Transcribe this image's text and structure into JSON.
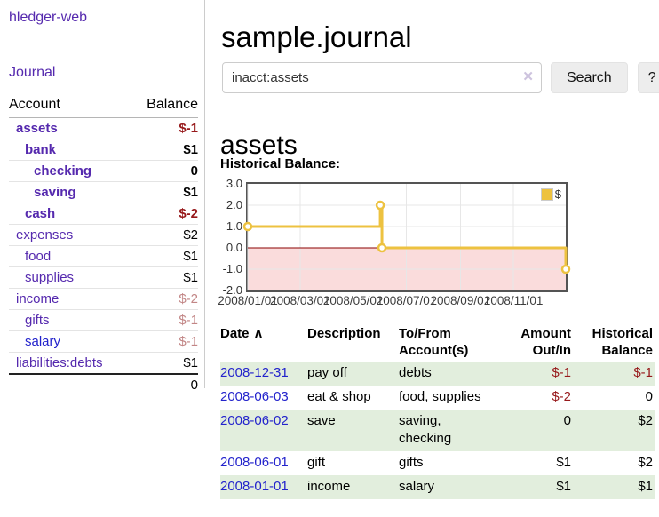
{
  "colors": {
    "purple": "#5529ae",
    "blue": "#2323cc",
    "neg_strong": "#97191b",
    "neg_muted": "#c28686",
    "row_green": "#e2eedd",
    "gold": "#edc240",
    "zero_line": "#8b0000",
    "neg_region": "#fadcdc",
    "border_dark": "#545454",
    "gridline": "#e7e7e7"
  },
  "app": {
    "brand": "hledger-web",
    "nav_journal": "Journal"
  },
  "sidebar": {
    "header": {
      "account": "Account",
      "balance": "Balance"
    },
    "accounts": [
      {
        "name": "assets",
        "balance": "$-1",
        "depth": 1,
        "bold": true,
        "tone": "neg"
      },
      {
        "name": "bank",
        "balance": "$1",
        "depth": 2,
        "bold": true,
        "tone": ""
      },
      {
        "name": "checking",
        "balance": "0",
        "depth": 3,
        "bold": true,
        "tone": ""
      },
      {
        "name": "saving",
        "balance": "$1",
        "depth": 3,
        "bold": true,
        "tone": ""
      },
      {
        "name": "cash",
        "balance": "$-2",
        "depth": 2,
        "bold": true,
        "tone": "neg"
      },
      {
        "name": "expenses",
        "balance": "$2",
        "depth": 1,
        "bold": false,
        "tone": ""
      },
      {
        "name": "food",
        "balance": "$1",
        "depth": 2,
        "bold": false,
        "tone": ""
      },
      {
        "name": "supplies",
        "balance": "$1",
        "depth": 2,
        "bold": false,
        "tone": ""
      },
      {
        "name": "income",
        "balance": "$-2",
        "depth": 1,
        "bold": false,
        "tone": "negmuted"
      },
      {
        "name": "gifts",
        "balance": "$-1",
        "depth": 2,
        "bold": false,
        "tone": "negmuted"
      },
      {
        "name": "salary",
        "balance": "$-1",
        "depth": 2,
        "bold": false,
        "tone": "negmuted",
        "blue": true
      },
      {
        "name": "liabilities:debts",
        "balance": "$1",
        "depth": 1,
        "bold": false,
        "tone": ""
      }
    ],
    "total": "0"
  },
  "main": {
    "title": "sample.journal",
    "search": {
      "value": "inacct:assets",
      "clear_icon": "✕",
      "button": "Search",
      "help": "?"
    },
    "account_heading": "assets",
    "chart_label": "Historical Balance:",
    "register": {
      "headers": [
        {
          "label": "Date",
          "align": "left",
          "sorted_asc": true
        },
        {
          "label": "Description",
          "align": "left"
        },
        {
          "label": "To/From Account(s)",
          "align": "left"
        },
        {
          "label": "Amount Out/In",
          "align": "right"
        },
        {
          "label": "Historical Balance",
          "align": "right"
        }
      ],
      "sort_icon": "∧",
      "rows": [
        {
          "date": "2008-12-31",
          "description": "pay off",
          "accounts": "debts",
          "amount": "$-1",
          "amount_neg": true,
          "balance": "$-1",
          "balance_neg": true
        },
        {
          "date": "2008-06-03",
          "description": "eat & shop",
          "accounts": "food, supplies",
          "amount": "$-2",
          "amount_neg": true,
          "balance": "0",
          "balance_neg": false
        },
        {
          "date": "2008-06-02",
          "description": "save",
          "accounts": "saving, checking",
          "amount": "0",
          "amount_neg": false,
          "balance": "$2",
          "balance_neg": false
        },
        {
          "date": "2008-06-01",
          "description": "gift",
          "accounts": "gifts",
          "amount": "$1",
          "amount_neg": false,
          "balance": "$2",
          "balance_neg": false
        },
        {
          "date": "2008-01-01",
          "description": "income",
          "accounts": "salary",
          "amount": "$1",
          "amount_neg": false,
          "balance": "$1",
          "balance_neg": false
        }
      ]
    }
  },
  "chart_data": {
    "type": "line",
    "title": "Historical Balance",
    "x_start": "2008-01-01",
    "x_span_days": 365,
    "x_ticks": [
      "2008/01/01",
      "2008/03/01",
      "2008/05/01",
      "2008/07/01",
      "2008/09/01",
      "2008/11/01"
    ],
    "y_ticks": [
      3.0,
      2.0,
      1.0,
      0.0,
      -1.0,
      -2.0
    ],
    "ylim": [
      -2,
      3
    ],
    "grid": true,
    "legend_position": "top-right",
    "series": [
      {
        "name": "$",
        "color": "#edc240",
        "step": true,
        "points": [
          [
            "2008-01-01",
            1
          ],
          [
            "2008-06-01",
            2
          ],
          [
            "2008-06-03",
            0
          ],
          [
            "2008-12-31",
            -1
          ]
        ]
      }
    ]
  }
}
